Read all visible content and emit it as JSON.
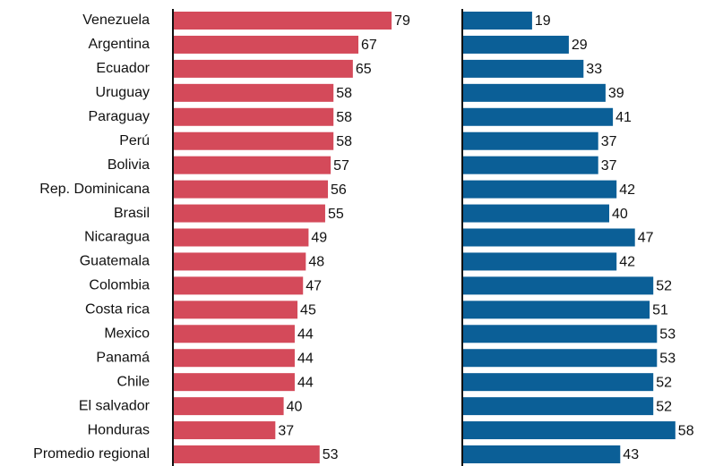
{
  "chart_data": {
    "type": "bar",
    "categories": [
      "Venezuela",
      "Argentina",
      "Ecuador",
      "Uruguay",
      "Paraguay",
      "Perú",
      "Bolivia",
      "Rep. Dominicana",
      "Brasil",
      "Nicaragua",
      "Guatemala",
      "Colombia",
      "Costa rica",
      "Mexico",
      "Panamá",
      "Chile",
      "El salvador",
      "Honduras",
      "Promedio regional"
    ],
    "series": [
      {
        "color": "#d44a5a",
        "values": [
          79,
          67,
          65,
          58,
          58,
          58,
          57,
          56,
          55,
          49,
          48,
          47,
          45,
          44,
          44,
          44,
          40,
          37,
          53
        ]
      },
      {
        "color": "#0b5f97",
        "values": [
          19,
          29,
          33,
          39,
          41,
          37,
          37,
          42,
          40,
          47,
          42,
          52,
          51,
          53,
          53,
          52,
          52,
          58,
          43
        ]
      }
    ]
  }
}
